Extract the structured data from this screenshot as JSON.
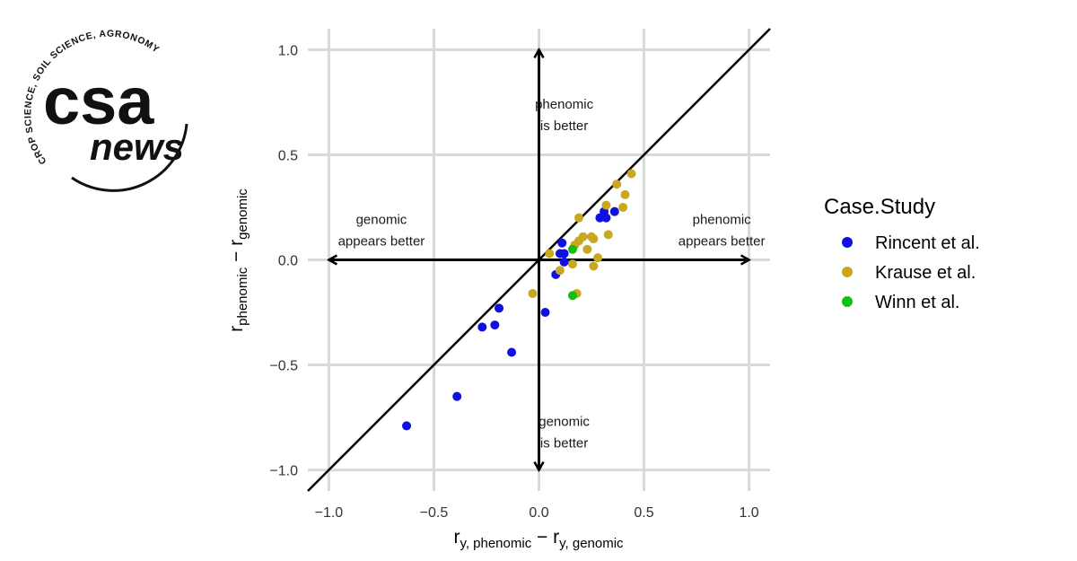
{
  "logo": {
    "arc_text": "CROP SCIENCE, SOIL SCIENCE, AGRONOMY",
    "main_text": "csa",
    "sub_text": "news"
  },
  "chart_data": {
    "type": "scatter",
    "title": "",
    "xlim": [
      -1.1,
      1.1
    ],
    "ylim": [
      -1.1,
      1.1
    ],
    "x_ticks": [
      -1.0,
      -0.5,
      0.0,
      0.5,
      1.0
    ],
    "y_ticks": [
      -1.0,
      -0.5,
      0.0,
      0.5,
      1.0
    ],
    "x_tick_labels": [
      "−1.0",
      "−0.5",
      "0.0",
      "0.5",
      "1.0"
    ],
    "y_tick_labels": [
      "−1.0",
      "−0.5",
      "0.0",
      "0.5",
      "1.0"
    ],
    "xlabel": {
      "main": "r",
      "sub1": "y, phenomic",
      "mid": " − r",
      "sub2": "y, genomic"
    },
    "ylabel": {
      "main": "r",
      "sub1": "phenomic",
      "mid": " − r",
      "sub2": "genomic"
    },
    "grid": true,
    "reference_line": "y = x",
    "annotations": [
      {
        "lines": [
          "phenomic",
          "is better"
        ],
        "x": 0.12,
        "y": 0.72
      },
      {
        "lines": [
          "genomic",
          "appears better"
        ],
        "x": -0.75,
        "y": 0.17
      },
      {
        "lines": [
          "phenomic",
          "appears better"
        ],
        "x": 0.87,
        "y": 0.17
      },
      {
        "lines": [
          "genomic",
          "is better"
        ],
        "x": 0.12,
        "y": -0.79
      }
    ],
    "legend": {
      "title": "Case.Study",
      "position": "right"
    },
    "series": [
      {
        "name": "Rincent et al.",
        "color": "#1010e0",
        "points": [
          [
            -0.63,
            -0.79
          ],
          [
            -0.39,
            -0.65
          ],
          [
            -0.27,
            -0.32
          ],
          [
            -0.21,
            -0.31
          ],
          [
            -0.19,
            -0.23
          ],
          [
            -0.13,
            -0.44
          ],
          [
            0.03,
            -0.25
          ],
          [
            0.08,
            -0.07
          ],
          [
            0.1,
            0.03
          ],
          [
            0.11,
            0.08
          ],
          [
            0.12,
            0.03
          ],
          [
            0.12,
            -0.01
          ],
          [
            0.29,
            0.2
          ],
          [
            0.31,
            0.23
          ],
          [
            0.32,
            0.2
          ],
          [
            0.36,
            0.23
          ]
        ]
      },
      {
        "name": "Krause et al.",
        "color": "#c8a81e",
        "points": [
          [
            -0.03,
            -0.16
          ],
          [
            0.05,
            0.03
          ],
          [
            0.1,
            -0.05
          ],
          [
            0.16,
            -0.02
          ],
          [
            0.17,
            0.07
          ],
          [
            0.18,
            -0.16
          ],
          [
            0.19,
            0.09
          ],
          [
            0.19,
            0.2
          ],
          [
            0.21,
            0.11
          ],
          [
            0.23,
            0.05
          ],
          [
            0.25,
            0.11
          ],
          [
            0.26,
            0.1
          ],
          [
            0.26,
            -0.03
          ],
          [
            0.28,
            0.01
          ],
          [
            0.32,
            0.26
          ],
          [
            0.33,
            0.12
          ],
          [
            0.37,
            0.36
          ],
          [
            0.4,
            0.25
          ],
          [
            0.41,
            0.31
          ],
          [
            0.44,
            0.41
          ]
        ]
      },
      {
        "name": "Winn et al.",
        "color": "#10c010",
        "points": [
          [
            0.16,
            -0.17
          ],
          [
            0.16,
            0.05
          ]
        ]
      }
    ]
  }
}
